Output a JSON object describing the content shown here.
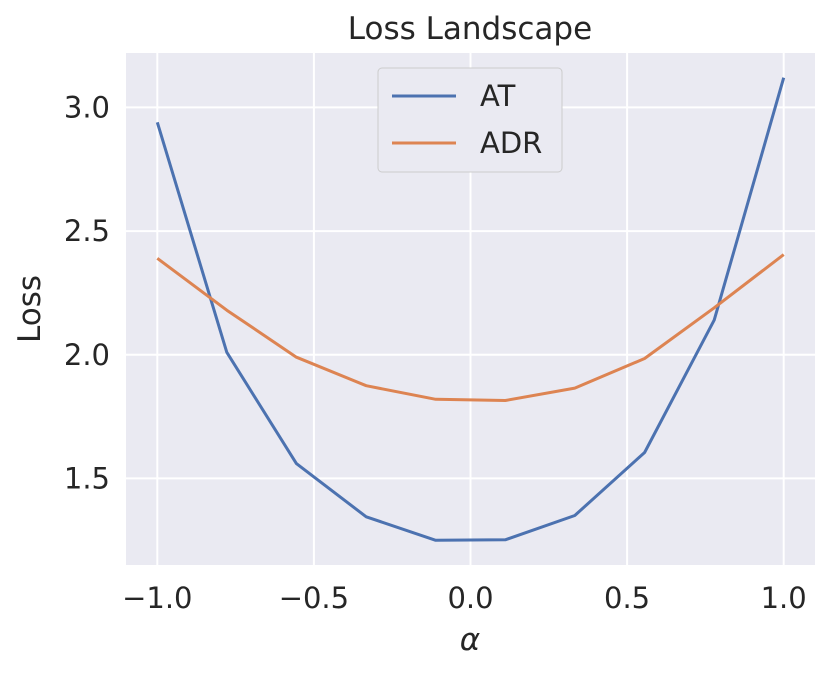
{
  "chart_data": {
    "type": "line",
    "title": "Loss Landscape",
    "xlabel": "α",
    "ylabel": "Loss",
    "xlim": [
      -1.1,
      1.1
    ],
    "ylim": [
      1.15,
      3.22
    ],
    "grid": true,
    "legend_position": "top-center",
    "x_ticks": [
      -1.0,
      -0.5,
      0.0,
      0.5,
      1.0
    ],
    "x_tick_labels": [
      "−1.0",
      "−0.5",
      "0.0",
      "0.5",
      "1.0"
    ],
    "y_ticks": [
      1.5,
      2.0,
      2.5,
      3.0
    ],
    "y_tick_labels": [
      "1.5",
      "2.0",
      "2.5",
      "3.0"
    ],
    "x": [
      -1.0,
      -0.778,
      -0.556,
      -0.333,
      -0.111,
      0.111,
      0.333,
      0.556,
      0.778,
      1.0
    ],
    "series": [
      {
        "name": "AT",
        "color": "#4c72b0",
        "values": [
          2.94,
          2.01,
          1.56,
          1.345,
          1.25,
          1.252,
          1.35,
          1.605,
          2.14,
          3.12
        ]
      },
      {
        "name": "ADR",
        "color": "#dd8452",
        "values": [
          2.39,
          2.18,
          1.99,
          1.875,
          1.82,
          1.815,
          1.865,
          1.985,
          2.19,
          2.405
        ]
      }
    ],
    "colors": {
      "plot_background": "#eaeaf2",
      "grid": "#ffffff",
      "text": "#262626"
    }
  }
}
